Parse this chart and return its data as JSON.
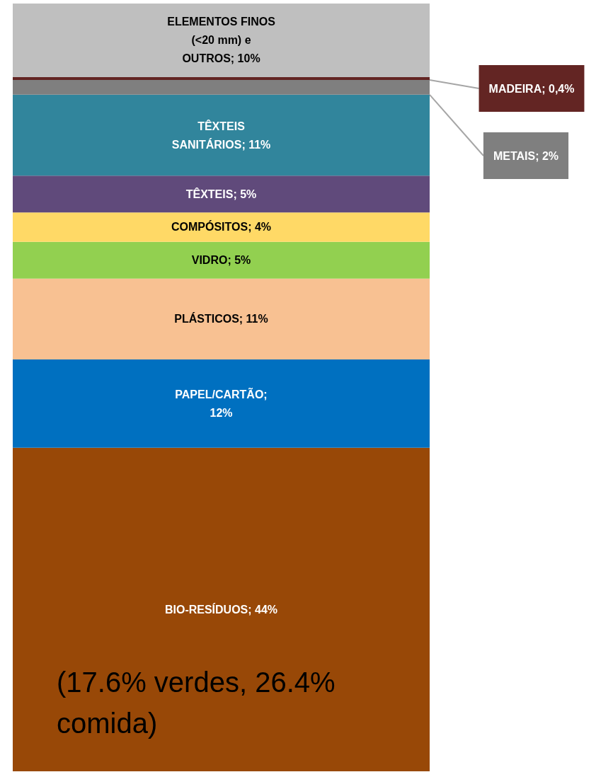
{
  "chart_data": {
    "type": "bar",
    "stacked": true,
    "categories": [
      null
    ],
    "series": [
      {
        "color": "#984807",
        "values": [
          44
        ],
        "value_labels": [
          "BIO-RESÍDUOS; 44%"
        ]
      },
      {
        "color": "#0070c0",
        "values": [
          12
        ],
        "value_labels": [
          "PAPEL/CARTÃO;\n12%"
        ]
      },
      {
        "color": "#f8c192",
        "values": [
          11
        ],
        "value_labels": [
          "PLÁSTICOS; 11%"
        ]
      },
      {
        "color": "#92d050",
        "values": [
          5
        ],
        "value_labels": [
          "VIDRO; 5%"
        ]
      },
      {
        "color": "#ffd966",
        "values": [
          4
        ],
        "value_labels": [
          "COMPÓSITOS; 4%"
        ]
      },
      {
        "color": "#604a7b",
        "values": [
          5
        ],
        "value_labels": [
          "TÊXTEIS; 5%"
        ]
      },
      {
        "color": "#31859c",
        "values": [
          11
        ],
        "value_labels": [
          "TÊXTEIS\nSANITÁRIOS; 11%"
        ]
      },
      {
        "color": "#7f7f7f",
        "values": [
          2
        ],
        "value_labels": [
          "METAIS; 2%"
        ]
      },
      {
        "color": "#632523",
        "values": [
          0.4
        ],
        "value_labels": [
          "MADEIRA; 0,4%"
        ]
      },
      {
        "color": "#bfbfbf",
        "values": [
          10
        ],
        "value_labels": [
          "ELEMENTOS FINOS\n(<20 mm) e\nOUTROS; 10%"
        ]
      }
    ],
    "annotations": [
      "(17.6% verdes, 26.4%\ncomida)"
    ]
  }
}
